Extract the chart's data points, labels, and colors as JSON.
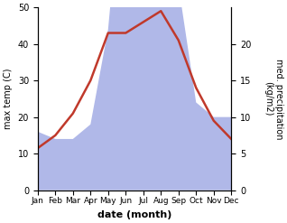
{
  "months": [
    "Jan",
    "Feb",
    "Mar",
    "Apr",
    "May",
    "Jun",
    "Jul",
    "Aug",
    "Sep",
    "Oct",
    "Nov",
    "Dec"
  ],
  "temperature": [
    11.5,
    15,
    21,
    30,
    43,
    43,
    46,
    49,
    41,
    28,
    19,
    14
  ],
  "precipitation": [
    8,
    7,
    7,
    9,
    22,
    48,
    38,
    45,
    28,
    12,
    10,
    10
  ],
  "temp_color": "#c0392b",
  "precip_fill_color": "#b0b8e8",
  "temp_ylim": [
    0,
    50
  ],
  "precip_ylim": [
    0,
    25
  ],
  "right_yticks": [
    0,
    5,
    10,
    15,
    20
  ],
  "left_yticks": [
    0,
    10,
    20,
    30,
    40,
    50
  ],
  "xlabel": "date (month)",
  "ylabel_left": "max temp (C)",
  "ylabel_right": "med. precipitation\n(kg/m2)",
  "figsize": [
    3.18,
    2.47
  ],
  "dpi": 100
}
